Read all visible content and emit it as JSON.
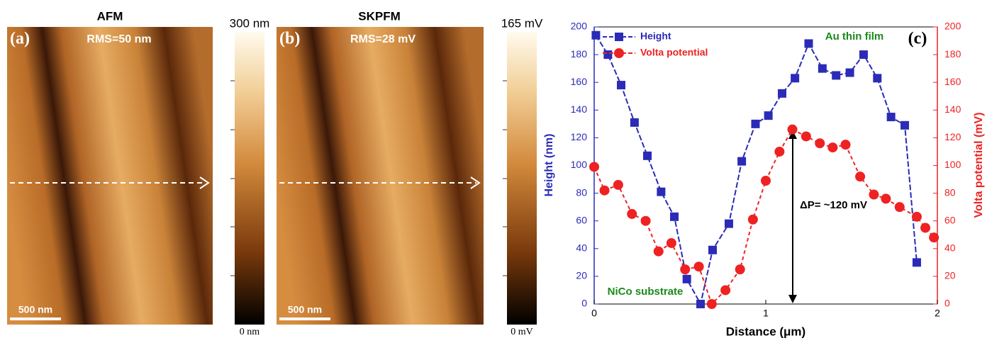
{
  "panel_a": {
    "label": "(a)",
    "title": "AFM",
    "rms": "RMS=50 nm",
    "scale_bar": "500 nm",
    "colorbar_max": "300 nm",
    "colorbar_min": "0 nm"
  },
  "panel_b": {
    "label": "(b)",
    "title": "SKPFM",
    "rms": "RMS=28 mV",
    "scale_bar": "500 nm",
    "colorbar_max": "165 mV",
    "colorbar_min": "0 mV"
  },
  "chart_data": {
    "type": "line",
    "label": "(c)",
    "x_label": "Distance (μm)",
    "y_label": "Height (nm)",
    "y2_label": "Volta potential (mV)",
    "xlim": [
      0,
      2
    ],
    "xticks": [
      0,
      1,
      2
    ],
    "ylim": [
      0,
      200
    ],
    "yticks": [
      0,
      20,
      40,
      60,
      80,
      100,
      120,
      140,
      160,
      180,
      200
    ],
    "y2lim": [
      0,
      200
    ],
    "y2ticks": [
      0,
      20,
      40,
      60,
      80,
      100,
      120,
      140,
      160,
      180,
      200
    ],
    "annotations": [
      "Au thin film",
      "NiCo substrate",
      "ΔP= ~120 mV"
    ],
    "series": [
      {
        "name": "Height",
        "color": "#2b2bb8",
        "marker": "square",
        "x": [
          0.01,
          0.08,
          0.157,
          0.235,
          0.31,
          0.39,
          0.467,
          0.54,
          0.62,
          0.69,
          0.785,
          0.86,
          0.94,
          1.015,
          1.095,
          1.17,
          1.25,
          1.33,
          1.41,
          1.49,
          1.57,
          1.65,
          1.73,
          1.81,
          1.88
        ],
        "values": [
          194,
          180,
          158,
          131,
          107,
          81,
          63,
          18,
          0,
          39,
          58,
          103,
          130,
          136,
          152,
          163,
          188,
          170,
          165,
          167,
          180,
          163,
          135,
          129,
          30
        ]
      },
      {
        "name": "Volta potential",
        "color": "#ee2222",
        "marker": "circle",
        "axis": "y2",
        "x": [
          0,
          0.06,
          0.14,
          0.22,
          0.3,
          0.375,
          0.45,
          0.53,
          0.61,
          0.685,
          0.765,
          0.85,
          0.925,
          1.0,
          1.08,
          1.155,
          1.235,
          1.315,
          1.39,
          1.465,
          1.55,
          1.63,
          1.7,
          1.78,
          1.88,
          1.93,
          1.98
        ],
        "values": [
          99,
          82,
          86,
          65,
          60,
          38,
          44,
          25,
          27,
          0,
          10,
          25,
          61,
          89,
          110,
          126,
          121,
          116,
          113,
          115,
          92,
          79,
          76,
          70,
          63,
          55,
          48
        ]
      }
    ]
  }
}
